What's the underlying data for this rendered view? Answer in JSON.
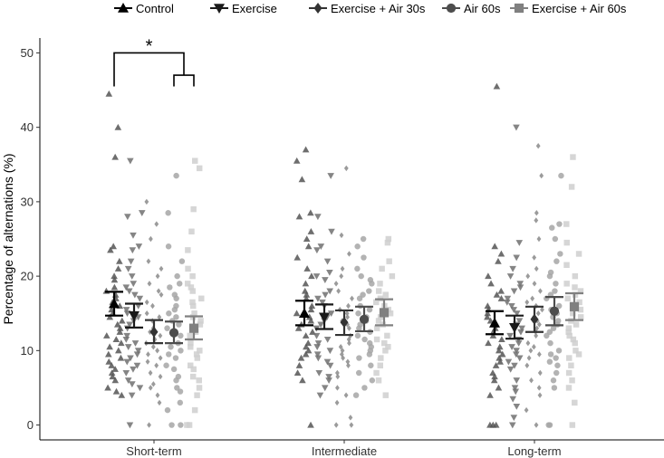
{
  "chart_data": {
    "type": "scatter",
    "title": "",
    "xlabel": "",
    "ylabel": "Percentage of alternations (%)",
    "ylim": [
      -2,
      52
    ],
    "yticks": [
      0,
      10,
      20,
      30,
      40,
      50
    ],
    "categories": [
      "Short-term",
      "Intermediate",
      "Long-term"
    ],
    "legend_position": "top",
    "grid": false,
    "series": [
      {
        "name": "Control",
        "shape": "triangle-up",
        "color": "#000000",
        "point_color": "#555555",
        "mean": [
          16.3,
          15.0,
          13.7
        ],
        "se_low": [
          14.7,
          13.4,
          12.2
        ],
        "se_high": [
          17.9,
          16.7,
          15.3
        ],
        "points": [
          [
            44.5,
            40.0,
            36.0,
            24.0,
            23.5,
            22.0,
            21.0,
            20.0,
            19.5,
            18.5,
            18.0,
            17.5,
            17.0,
            16.5,
            16.0,
            15.5,
            15.0,
            14.5,
            14.0,
            13.5,
            13.0,
            12.5,
            12.0,
            11.5,
            11.0,
            10.5,
            10.0,
            9.5,
            9.0,
            8.5,
            8.0,
            7.5,
            7.0,
            6.5,
            6.0,
            5.0,
            4.5,
            4.0
          ],
          [
            37.0,
            35.5,
            33.0,
            28.5,
            28.0,
            26.0,
            25.0,
            24.0,
            22.5,
            21.0,
            20.0,
            19.0,
            18.0,
            17.5,
            17.0,
            16.0,
            15.5,
            15.0,
            14.5,
            14.0,
            13.5,
            13.0,
            12.5,
            12.0,
            11.0,
            10.5,
            10.0,
            9.5,
            9.0,
            8.0,
            7.0,
            6.0,
            0.0
          ],
          [
            45.5,
            24.0,
            23.0,
            22.0,
            20.0,
            19.0,
            18.0,
            17.5,
            17.0,
            16.0,
            15.5,
            15.0,
            14.5,
            14.0,
            13.5,
            13.0,
            12.5,
            12.0,
            11.5,
            11.0,
            10.5,
            10.0,
            9.5,
            9.0,
            8.5,
            8.0,
            7.0,
            6.5,
            6.0,
            5.0,
            4.0,
            0.0,
            0.0,
            0.0
          ]
        ]
      },
      {
        "name": "Exercise",
        "shape": "triangle-down",
        "color": "#1a1a1a",
        "point_color": "#707070",
        "mean": [
          14.7,
          14.5,
          13.1
        ],
        "se_low": [
          13.1,
          12.9,
          11.6
        ],
        "se_high": [
          16.3,
          16.2,
          14.7
        ],
        "points": [
          [
            35.5,
            28.5,
            28.0,
            25.5,
            24.0,
            23.5,
            22.0,
            21.0,
            20.0,
            19.0,
            18.5,
            18.0,
            17.5,
            17.0,
            16.0,
            15.5,
            15.0,
            14.5,
            14.0,
            13.5,
            13.0,
            12.0,
            11.5,
            11.0,
            10.5,
            10.0,
            9.5,
            9.0,
            8.5,
            8.0,
            7.5,
            7.0,
            6.0,
            5.5,
            5.0,
            4.0,
            0.0
          ],
          [
            33.5,
            28.0,
            26.0,
            24.0,
            23.5,
            22.0,
            20.5,
            20.0,
            19.5,
            18.0,
            17.5,
            17.0,
            16.5,
            16.0,
            15.0,
            14.5,
            14.0,
            13.5,
            13.0,
            12.0,
            11.5,
            11.0,
            10.5,
            10.0,
            9.5,
            9.0,
            8.5,
            8.0,
            7.0,
            6.5,
            6.0,
            5.0,
            4.0
          ],
          [
            40.0,
            24.5,
            22.5,
            21.0,
            20.0,
            19.0,
            18.5,
            18.0,
            17.0,
            16.5,
            16.0,
            15.5,
            15.0,
            14.0,
            13.5,
            13.0,
            12.5,
            12.0,
            11.5,
            11.0,
            10.5,
            10.0,
            9.5,
            9.0,
            8.5,
            8.0,
            7.5,
            6.0,
            5.0,
            4.5,
            3.5,
            2.5,
            1.0,
            0.0
          ]
        ]
      },
      {
        "name": "Exercise + Air 30s",
        "shape": "diamond",
        "color": "#333333",
        "point_color": "#8a8a8a",
        "mean": [
          12.5,
          13.8,
          14.2
        ],
        "se_low": [
          11.0,
          12.1,
          12.5
        ],
        "se_high": [
          14.1,
          15.4,
          15.9
        ],
        "points": [
          [
            30.0,
            27.0,
            25.0,
            22.0,
            21.0,
            20.0,
            19.0,
            18.0,
            17.5,
            16.5,
            16.0,
            15.0,
            14.5,
            14.0,
            13.0,
            12.5,
            12.0,
            11.5,
            11.0,
            10.5,
            10.0,
            9.5,
            9.0,
            8.5,
            8.0,
            7.0,
            6.5,
            5.5,
            5.0,
            4.0,
            3.0,
            0.0
          ],
          [
            34.5,
            25.5,
            23.0,
            21.0,
            20.0,
            19.0,
            18.0,
            17.0,
            16.0,
            15.5,
            15.0,
            14.5,
            14.0,
            13.5,
            13.0,
            12.0,
            11.5,
            11.0,
            10.5,
            10.0,
            9.5,
            9.0,
            8.5,
            8.0,
            7.0,
            6.5,
            5.0,
            4.0,
            3.0,
            1.0,
            0.0,
            0.0
          ],
          [
            37.5,
            33.5,
            28.5,
            27.5,
            25.0,
            22.5,
            21.0,
            20.0,
            19.0,
            18.0,
            17.0,
            16.5,
            16.0,
            15.5,
            15.0,
            14.5,
            14.0,
            13.5,
            13.0,
            12.5,
            12.0,
            11.0,
            10.5,
            10.0,
            9.5,
            9.0,
            8.0,
            7.0,
            6.0,
            5.0,
            4.0,
            2.0,
            0.0
          ]
        ]
      },
      {
        "name": "Air 60s",
        "shape": "circle",
        "color": "#4d4d4d",
        "point_color": "#a6a6a6",
        "mean": [
          12.4,
          14.2,
          15.3
        ],
        "se_low": [
          11.0,
          12.6,
          13.4
        ],
        "se_high": [
          13.9,
          15.9,
          17.2
        ],
        "points": [
          [
            33.5,
            28.5,
            24.0,
            22.0,
            20.0,
            19.0,
            18.5,
            17.5,
            17.0,
            16.0,
            15.5,
            15.0,
            14.5,
            14.0,
            13.5,
            13.0,
            12.5,
            12.0,
            11.0,
            10.5,
            10.0,
            9.5,
            9.0,
            8.0,
            7.5,
            6.5,
            6.0,
            5.0,
            4.5,
            3.0,
            2.0,
            0.0,
            0.0
          ],
          [
            25.0,
            24.0,
            22.5,
            21.0,
            20.0,
            19.5,
            19.0,
            18.0,
            17.5,
            17.0,
            16.0,
            15.5,
            15.0,
            14.5,
            14.0,
            13.5,
            13.0,
            12.5,
            12.0,
            11.5,
            11.0,
            10.5,
            10.0,
            9.5,
            9.0,
            8.0,
            7.0,
            6.0,
            5.0,
            4.0
          ],
          [
            33.5,
            27.0,
            26.5,
            25.0,
            23.0,
            22.0,
            20.5,
            20.0,
            19.0,
            18.0,
            17.5,
            17.0,
            16.0,
            15.5,
            15.0,
            14.5,
            14.0,
            13.5,
            13.0,
            12.5,
            12.0,
            11.0,
            10.0,
            9.5,
            9.0,
            8.5,
            8.0,
            7.0,
            6.0,
            5.0,
            0.0,
            0.0
          ]
        ]
      },
      {
        "name": "Exercise + Air 60s",
        "shape": "square",
        "color": "#808080",
        "point_color": "#cfcfcf",
        "mean": [
          13.0,
          15.1,
          15.9
        ],
        "se_low": [
          11.5,
          13.4,
          14.1
        ],
        "se_high": [
          14.6,
          16.9,
          17.7
        ],
        "points": [
          [
            35.5,
            34.5,
            29.0,
            26.0,
            23.5,
            21.0,
            20.0,
            19.0,
            18.5,
            18.0,
            17.0,
            16.5,
            16.0,
            15.0,
            14.5,
            14.0,
            13.5,
            13.0,
            12.5,
            12.0,
            11.0,
            10.5,
            10.0,
            9.5,
            9.0,
            8.0,
            7.5,
            6.5,
            6.0,
            5.0,
            4.0,
            2.0,
            0.0,
            0.0
          ],
          [
            25.0,
            24.5,
            22.0,
            21.0,
            20.0,
            19.0,
            18.0,
            17.5,
            17.0,
            16.5,
            16.0,
            15.5,
            15.0,
            14.5,
            14.0,
            13.5,
            13.0,
            12.0,
            11.5,
            11.0,
            10.5,
            10.0,
            9.0,
            8.0,
            7.0,
            6.0,
            4.0
          ],
          [
            36.0,
            32.0,
            27.0,
            24.5,
            23.0,
            21.5,
            20.0,
            19.0,
            18.5,
            18.0,
            17.5,
            17.0,
            16.5,
            16.0,
            15.5,
            15.0,
            14.5,
            14.0,
            13.5,
            13.0,
            12.5,
            12.0,
            11.5,
            11.0,
            10.0,
            9.5,
            9.0,
            8.0,
            7.0,
            6.0,
            5.0,
            3.0,
            0.0
          ]
        ]
      }
    ],
    "annotations": [
      {
        "text": "*",
        "type": "significance-bracket",
        "category": "Short-term",
        "from_series": "Control",
        "to_group": [
          "Air 60s",
          "Exercise + Air 60s"
        ]
      }
    ]
  }
}
